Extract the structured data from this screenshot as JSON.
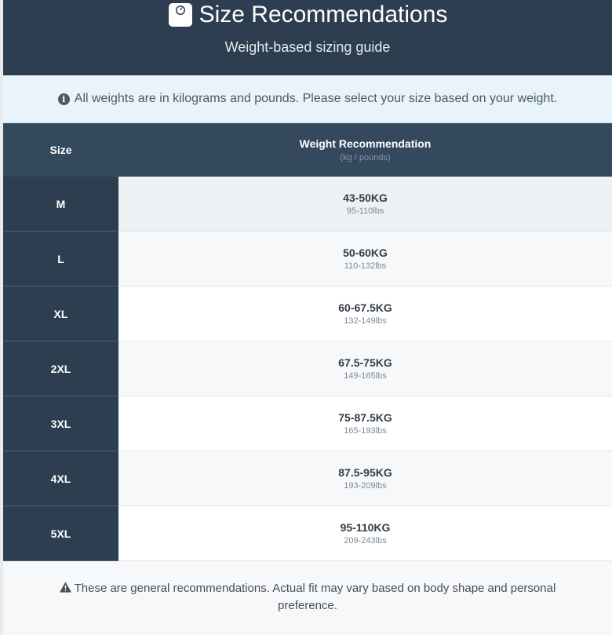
{
  "header": {
    "icon": "weight-scale-icon",
    "title": "Size Recommendations",
    "subtitle": "Weight-based sizing guide"
  },
  "info": {
    "icon": "info-circle-icon",
    "text": "All weights are in kilograms and pounds. Please select your size based on your weight."
  },
  "table": {
    "col_size": "Size",
    "col_weight": "Weight Recommendation",
    "col_weight_sub": "(kg / pounds)",
    "rows": [
      {
        "size": "M",
        "kg": "43-50KG",
        "lbs": "95-110lbs"
      },
      {
        "size": "L",
        "kg": "50-60KG",
        "lbs": "110-132lbs"
      },
      {
        "size": "XL",
        "kg": "60-67.5KG",
        "lbs": "132-149lbs"
      },
      {
        "size": "2XL",
        "kg": "67.5-75KG",
        "lbs": "149-165lbs"
      },
      {
        "size": "3XL",
        "kg": "75-87.5KG",
        "lbs": "165-193lbs"
      },
      {
        "size": "4XL",
        "kg": "87.5-95KG",
        "lbs": "193-209lbs"
      },
      {
        "size": "5XL",
        "kg": "95-110KG",
        "lbs": "209-243lbs"
      }
    ]
  },
  "footer": {
    "icon": "warning-triangle-icon",
    "text": "These are general recommendations. Actual fit may vary based on body shape and personal preference."
  },
  "colors": {
    "header": "#2c3e50",
    "table_header": "#34495e",
    "info_bg": "#e8f4fa"
  }
}
